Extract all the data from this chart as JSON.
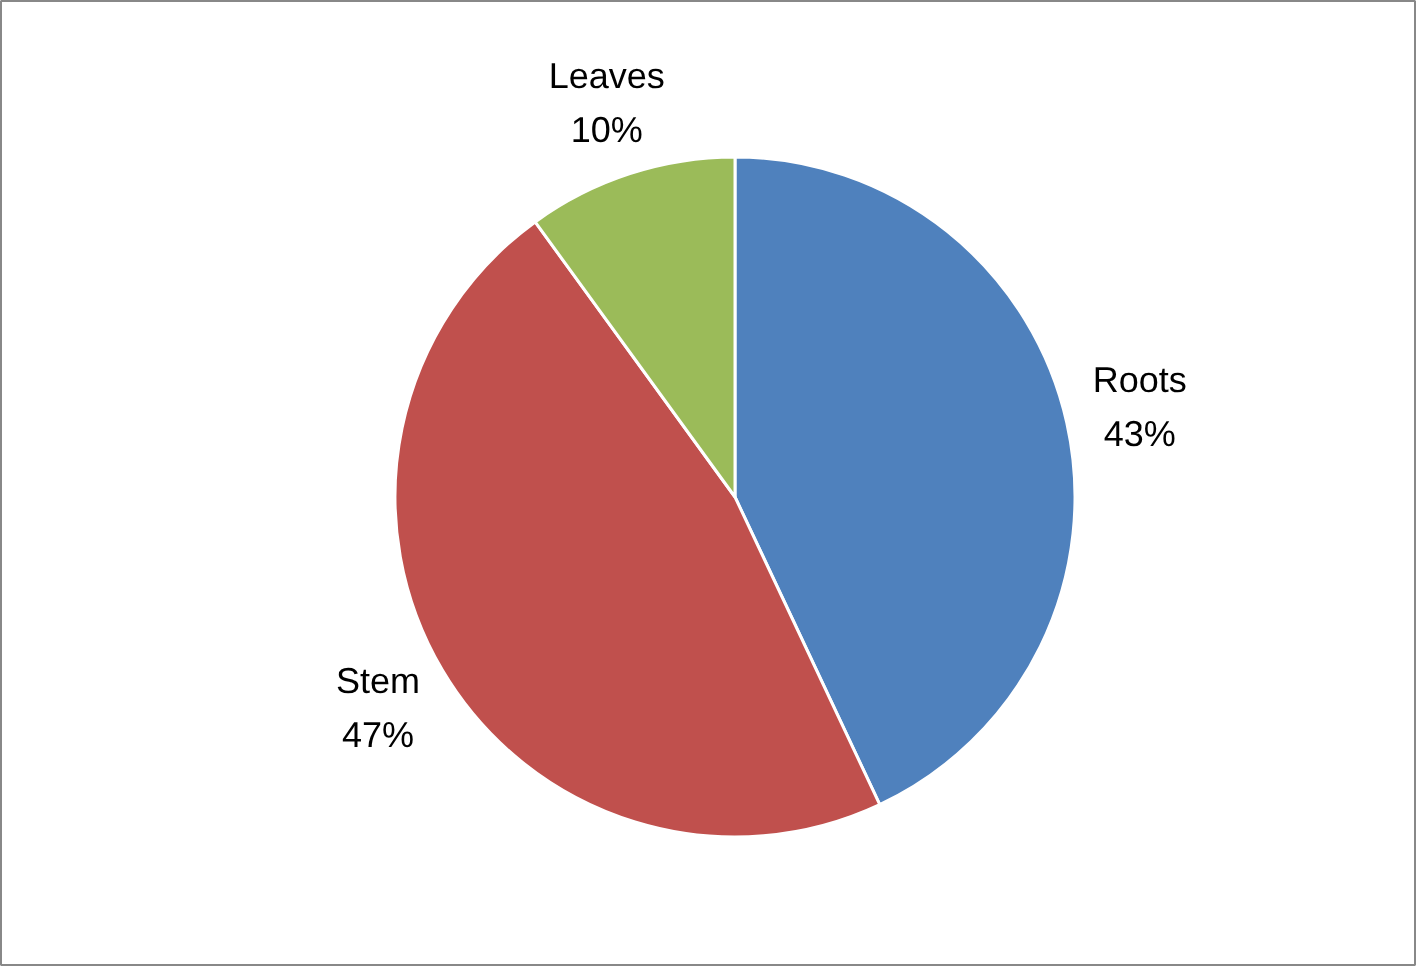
{
  "chart_data": {
    "type": "pie",
    "categories": [
      "Roots",
      "Stem",
      "Leaves"
    ],
    "values": [
      43,
      47,
      10
    ],
    "colors": [
      "#4f81bd",
      "#c0504d",
      "#9bbb59"
    ],
    "value_labels": [
      "43%",
      "47%",
      "10%"
    ],
    "legend": false
  }
}
